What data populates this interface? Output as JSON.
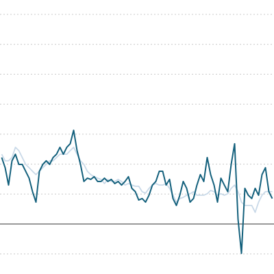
{
  "chart_data": {
    "type": "line",
    "categories": [
      null,
      null,
      null,
      null,
      null,
      null,
      null,
      null,
      null,
      null,
      null,
      null,
      null,
      null,
      null,
      null,
      null,
      null,
      null,
      null,
      null,
      null,
      null,
      null,
      null,
      null,
      null,
      null,
      null,
      null,
      null,
      null,
      null,
      null,
      null,
      null,
      null,
      null,
      null,
      null,
      null,
      null,
      null,
      null,
      null,
      null,
      null,
      null,
      null,
      null,
      null,
      null,
      null,
      null,
      null,
      null,
      null,
      null,
      null,
      null,
      null,
      null,
      null,
      null,
      null,
      null,
      null,
      null,
      null,
      null,
      null,
      null,
      null,
      null,
      null,
      null,
      null,
      null,
      null,
      null
    ],
    "series": [
      {
        "color": "#c9d9e8",
        "values": [
          2.33,
          2.11,
          2.11,
          2.22,
          2.56,
          2.45,
          2.22,
          1.99,
          1.88,
          1.76,
          1.65,
          1.76,
          1.88,
          1.99,
          2.11,
          2.11,
          2.22,
          2.33,
          2.33,
          2.33,
          2.45,
          2.56,
          2.33,
          2.11,
          1.99,
          1.76,
          1.65,
          1.58,
          1.53,
          1.49,
          1.35,
          1.49,
          1.42,
          1.42,
          1.49,
          1.42,
          1.3,
          1.35,
          1.3,
          1.26,
          1.26,
          1.08,
          1.03,
          1.19,
          1.3,
          1.35,
          1.3,
          1.3,
          1.35,
          1.19,
          0.96,
          0.73,
          0.85,
          0.89,
          0.96,
          1.01,
          1.08,
          0.96,
          0.96,
          0.96,
          1.01,
          1.12,
          1.08,
          0.96,
          1.01,
          0.96,
          1.01,
          1.19,
          1.3,
          1.08,
          0.73,
          0.62,
          0.62,
          0.62,
          0.39,
          0.73,
          0.96,
          1.08,
          1.08,
          1.08
        ]
      },
      {
        "color": "#13607c",
        "values": [
          2.22,
          1.88,
          1.3,
          2.11,
          2.33,
          1.99,
          1.99,
          1.76,
          1.53,
          1.08,
          0.73,
          1.76,
          1.99,
          2.11,
          1.99,
          2.22,
          2.33,
          2.56,
          2.33,
          2.56,
          2.68,
          3.13,
          2.45,
          1.99,
          1.42,
          1.53,
          1.49,
          1.58,
          1.42,
          1.42,
          1.53,
          1.42,
          1.49,
          1.35,
          1.42,
          1.3,
          1.42,
          1.58,
          1.19,
          1.08,
          0.8,
          0.85,
          0.73,
          0.96,
          1.3,
          1.42,
          1.76,
          1.76,
          1.3,
          1.49,
          0.85,
          0.62,
          0.96,
          1.42,
          1.19,
          0.73,
          0.85,
          1.3,
          1.65,
          1.42,
          2.22,
          1.65,
          1.3,
          0.73,
          1.53,
          1.3,
          1.08,
          1.99,
          2.68,
          0.16,
          -0.98,
          1.19,
          0.96,
          0.85,
          1.19,
          0.96,
          1.65,
          1.88,
          1.08,
          0.85
        ]
      }
    ],
    "ylim": [
      -1.67,
      7.48
    ],
    "yticks": [
      -1,
      0,
      1,
      2,
      3,
      4,
      5,
      6,
      7
    ],
    "grid": true
  }
}
